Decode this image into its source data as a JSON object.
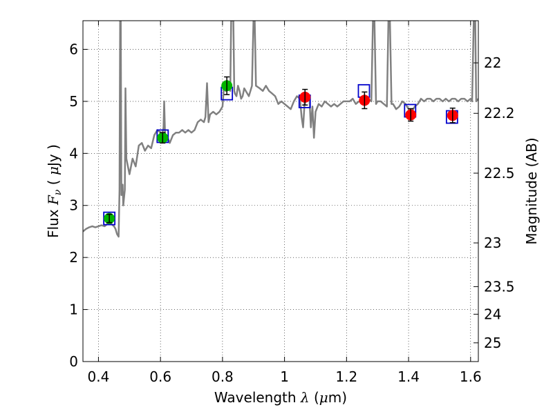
{
  "chart_data": {
    "type": "line",
    "xlabel": {
      "prefix": "Wavelength ",
      "symbol": "λ",
      "unit_open": " (",
      "unit_sym": "μ",
      "unit_rest": "m)"
    },
    "ylabel": {
      "prefix": "Flux  ",
      "symbol": "F",
      "sub": "ν",
      "unit_open": "  ( ",
      "unit_sym": "μ",
      "unit_rest": "Jy )"
    },
    "y2label": "Magnitude (AB)",
    "xlim": [
      0.35,
      1.625
    ],
    "ylim": [
      0,
      6.55
    ],
    "grid": true,
    "xticks": [
      {
        "v": 0.4,
        "label": "0.4"
      },
      {
        "v": 0.6,
        "label": "0.6"
      },
      {
        "v": 0.8,
        "label": "0.8"
      },
      {
        "v": 1.0,
        "label": "1"
      },
      {
        "v": 1.2,
        "label": "1.2"
      },
      {
        "v": 1.4,
        "label": "1.4"
      },
      {
        "v": 1.6,
        "label": "1.6"
      }
    ],
    "yticks": [
      {
        "v": 0,
        "label": "0"
      },
      {
        "v": 1,
        "label": "1"
      },
      {
        "v": 2,
        "label": "2"
      },
      {
        "v": 3,
        "label": "3"
      },
      {
        "v": 4,
        "label": "4"
      },
      {
        "v": 5,
        "label": "5"
      },
      {
        "v": 6,
        "label": "6"
      }
    ],
    "y2ticks": [
      {
        "flux": 5.74,
        "label": "22"
      },
      {
        "flux": 4.77,
        "label": "22.2"
      },
      {
        "flux": 3.62,
        "label": "22.5"
      },
      {
        "flux": 2.28,
        "label": "23"
      },
      {
        "flux": 1.44,
        "label": "23.5"
      },
      {
        "flux": 0.91,
        "label": "24"
      },
      {
        "flux": 0.36,
        "label": "25"
      }
    ],
    "model_color": "#808080",
    "model_spectrum": [
      [
        0.35,
        2.5
      ],
      [
        0.36,
        2.55
      ],
      [
        0.37,
        2.58
      ],
      [
        0.38,
        2.6
      ],
      [
        0.39,
        2.58
      ],
      [
        0.4,
        2.6
      ],
      [
        0.41,
        2.62
      ],
      [
        0.42,
        2.6
      ],
      [
        0.43,
        2.65
      ],
      [
        0.44,
        2.65
      ],
      [
        0.45,
        2.6
      ],
      [
        0.455,
        2.55
      ],
      [
        0.46,
        2.45
      ],
      [
        0.465,
        2.4
      ],
      [
        0.468,
        3.3
      ],
      [
        0.47,
        6.55
      ],
      [
        0.472,
        6.55
      ],
      [
        0.474,
        3.2
      ],
      [
        0.478,
        3.4
      ],
      [
        0.48,
        3.0
      ],
      [
        0.485,
        3.3
      ],
      [
        0.487,
        5.25
      ],
      [
        0.49,
        3.9
      ],
      [
        0.5,
        3.6
      ],
      [
        0.51,
        3.9
      ],
      [
        0.52,
        3.75
      ],
      [
        0.53,
        4.15
      ],
      [
        0.54,
        4.2
      ],
      [
        0.55,
        4.05
      ],
      [
        0.56,
        4.15
      ],
      [
        0.57,
        4.1
      ],
      [
        0.58,
        4.35
      ],
      [
        0.59,
        4.45
      ],
      [
        0.6,
        4.4
      ],
      [
        0.605,
        4.35
      ],
      [
        0.61,
        4.5
      ],
      [
        0.612,
        5.0
      ],
      [
        0.615,
        4.3
      ],
      [
        0.62,
        4.35
      ],
      [
        0.63,
        4.2
      ],
      [
        0.64,
        4.35
      ],
      [
        0.65,
        4.4
      ],
      [
        0.66,
        4.4
      ],
      [
        0.67,
        4.45
      ],
      [
        0.68,
        4.4
      ],
      [
        0.69,
        4.45
      ],
      [
        0.7,
        4.4
      ],
      [
        0.71,
        4.45
      ],
      [
        0.72,
        4.6
      ],
      [
        0.73,
        4.65
      ],
      [
        0.74,
        4.6
      ],
      [
        0.745,
        4.7
      ],
      [
        0.75,
        5.35
      ],
      [
        0.755,
        4.6
      ],
      [
        0.76,
        4.75
      ],
      [
        0.77,
        4.8
      ],
      [
        0.78,
        4.75
      ],
      [
        0.79,
        4.8
      ],
      [
        0.8,
        4.9
      ],
      [
        0.805,
        5.3
      ],
      [
        0.81,
        5.2
      ],
      [
        0.815,
        5.25
      ],
      [
        0.82,
        5.25
      ],
      [
        0.825,
        5.2
      ],
      [
        0.828,
        6.55
      ],
      [
        0.835,
        6.55
      ],
      [
        0.838,
        5.2
      ],
      [
        0.84,
        5.15
      ],
      [
        0.845,
        5.1
      ],
      [
        0.85,
        5.3
      ],
      [
        0.855,
        5.2
      ],
      [
        0.86,
        5.05
      ],
      [
        0.865,
        5.1
      ],
      [
        0.87,
        5.25
      ],
      [
        0.875,
        5.2
      ],
      [
        0.88,
        5.15
      ],
      [
        0.885,
        5.1
      ],
      [
        0.89,
        5.2
      ],
      [
        0.895,
        5.3
      ],
      [
        0.9,
        6.55
      ],
      [
        0.904,
        6.55
      ],
      [
        0.908,
        5.3
      ],
      [
        0.92,
        5.25
      ],
      [
        0.93,
        5.2
      ],
      [
        0.94,
        5.3
      ],
      [
        0.95,
        5.2
      ],
      [
        0.96,
        5.15
      ],
      [
        0.97,
        5.1
      ],
      [
        0.98,
        4.95
      ],
      [
        0.99,
        5.0
      ],
      [
        1.0,
        4.95
      ],
      [
        1.01,
        4.9
      ],
      [
        1.02,
        4.85
      ],
      [
        1.03,
        5.0
      ],
      [
        1.04,
        5.1
      ],
      [
        1.05,
        5.05
      ],
      [
        1.055,
        4.7
      ],
      [
        1.06,
        4.5
      ],
      [
        1.065,
        5.0
      ],
      [
        1.07,
        5.0
      ],
      [
        1.08,
        5.1
      ],
      [
        1.085,
        4.5
      ],
      [
        1.09,
        4.9
      ],
      [
        1.095,
        4.3
      ],
      [
        1.1,
        4.8
      ],
      [
        1.11,
        4.95
      ],
      [
        1.12,
        4.9
      ],
      [
        1.13,
        5.0
      ],
      [
        1.14,
        4.95
      ],
      [
        1.15,
        4.9
      ],
      [
        1.16,
        4.95
      ],
      [
        1.17,
        4.9
      ],
      [
        1.18,
        4.95
      ],
      [
        1.19,
        5.0
      ],
      [
        1.2,
        5.0
      ],
      [
        1.21,
        5.0
      ],
      [
        1.22,
        5.05
      ],
      [
        1.23,
        4.95
      ],
      [
        1.24,
        5.0
      ],
      [
        1.25,
        5.0
      ],
      [
        1.26,
        5.05
      ],
      [
        1.27,
        5.05
      ],
      [
        1.28,
        5.0
      ],
      [
        1.285,
        6.55
      ],
      [
        1.29,
        6.55
      ],
      [
        1.295,
        4.95
      ],
      [
        1.3,
        5.0
      ],
      [
        1.31,
        5.0
      ],
      [
        1.32,
        4.95
      ],
      [
        1.33,
        4.9
      ],
      [
        1.335,
        6.55
      ],
      [
        1.34,
        6.55
      ],
      [
        1.345,
        4.95
      ],
      [
        1.35,
        4.95
      ],
      [
        1.36,
        4.85
      ],
      [
        1.37,
        4.9
      ],
      [
        1.38,
        5.0
      ],
      [
        1.39,
        4.95
      ],
      [
        1.4,
        4.85
      ],
      [
        1.41,
        4.8
      ],
      [
        1.42,
        4.9
      ],
      [
        1.43,
        4.95
      ],
      [
        1.44,
        5.05
      ],
      [
        1.45,
        5.0
      ],
      [
        1.46,
        5.05
      ],
      [
        1.47,
        5.05
      ],
      [
        1.48,
        5.0
      ],
      [
        1.49,
        5.05
      ],
      [
        1.5,
        5.05
      ],
      [
        1.51,
        5.0
      ],
      [
        1.52,
        5.05
      ],
      [
        1.53,
        5.0
      ],
      [
        1.54,
        5.05
      ],
      [
        1.55,
        5.05
      ],
      [
        1.56,
        5.0
      ],
      [
        1.57,
        5.05
      ],
      [
        1.58,
        5.05
      ],
      [
        1.59,
        5.0
      ],
      [
        1.6,
        5.05
      ],
      [
        1.605,
        5.0
      ],
      [
        1.61,
        6.55
      ],
      [
        1.615,
        6.55
      ],
      [
        1.618,
        5.0
      ],
      [
        1.625,
        5.05
      ]
    ],
    "model_photometry": {
      "color": "#0000cc",
      "points": [
        [
          0.435,
          2.75
        ],
        [
          0.607,
          4.33
        ],
        [
          0.814,
          5.15
        ],
        [
          1.065,
          5.0
        ],
        [
          1.256,
          5.2
        ],
        [
          1.405,
          4.82
        ],
        [
          1.54,
          4.7
        ]
      ]
    },
    "observed": [
      {
        "x": 0.435,
        "y": 2.75,
        "err": 0.08,
        "color": "#00b400"
      },
      {
        "x": 0.607,
        "y": 4.3,
        "err": 0.1,
        "color": "#00b400"
      },
      {
        "x": 0.814,
        "y": 5.3,
        "err": 0.17,
        "color": "#00b400"
      },
      {
        "x": 1.066,
        "y": 5.08,
        "err": 0.15,
        "color": "#ff0000"
      },
      {
        "x": 1.258,
        "y": 5.02,
        "err": 0.16,
        "color": "#ff0000"
      },
      {
        "x": 1.407,
        "y": 4.74,
        "err": 0.12,
        "color": "#ff0000"
      },
      {
        "x": 1.542,
        "y": 4.73,
        "err": 0.14,
        "color": "#ff0000"
      }
    ]
  }
}
